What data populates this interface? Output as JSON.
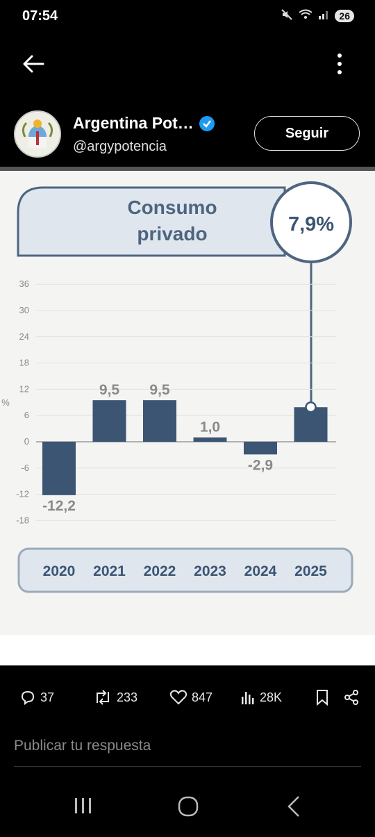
{
  "status_bar": {
    "time": "07:54",
    "battery": "26"
  },
  "post": {
    "author_name": "Argentina Pot…",
    "handle": "@argypotencia",
    "follow_label": "Seguir"
  },
  "chart_data": {
    "type": "bar",
    "title": "Consumo privado",
    "title_lines": [
      "Consumo",
      "privado"
    ],
    "highlight_value": "7,9%",
    "ylabel": "%",
    "categories": [
      "2020",
      "2021",
      "2022",
      "2023",
      "2024",
      "2025"
    ],
    "values": [
      -12.2,
      9.5,
      9.5,
      1.0,
      -2.9,
      7.9
    ],
    "value_labels": [
      "-12,2",
      "9,5",
      "9,5",
      "1,0",
      "-2,9",
      ""
    ],
    "yticks": [
      "36",
      "30",
      "24",
      "18",
      "12",
      "6",
      "0",
      "-6",
      "-12",
      "-18"
    ],
    "ylim": [
      -18,
      36
    ],
    "grid": true,
    "bar_color": "#3b5573"
  },
  "actions": {
    "replies": "37",
    "reposts": "233",
    "likes": "847",
    "views": "28K"
  },
  "reply": {
    "placeholder": "Publicar tu respuesta"
  },
  "colors": {
    "accent": "#1d9bf0",
    "background": "#000000"
  }
}
